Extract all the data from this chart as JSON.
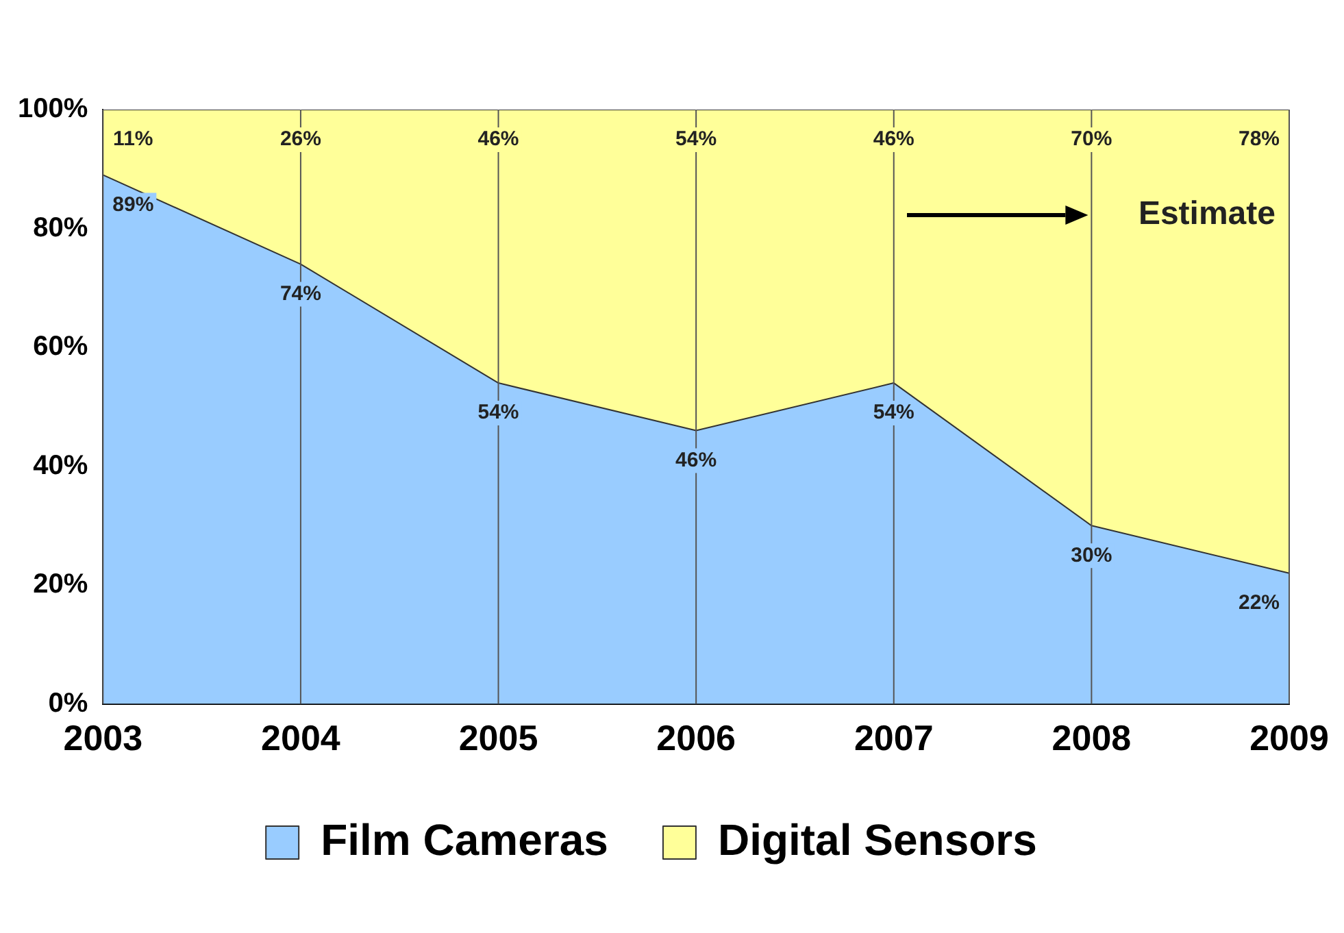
{
  "chart_data": {
    "type": "area",
    "stacked": true,
    "categories": [
      "2003",
      "2004",
      "2005",
      "2006",
      "2007",
      "2008",
      "2009"
    ],
    "series": [
      {
        "name": "Film Cameras",
        "color": "#99ccff",
        "values": [
          89,
          74,
          54,
          46,
          54,
          30,
          22
        ],
        "value_labels": [
          "89%",
          "74%",
          "54%",
          "46%",
          "54%",
          "30%",
          "22%"
        ]
      },
      {
        "name": "Digital Sensors",
        "color": "#ffff99",
        "values": [
          11,
          26,
          46,
          54,
          46,
          70,
          78
        ],
        "value_labels": [
          "11%",
          "26%",
          "46%",
          "54%",
          "46%",
          "70%",
          "78%"
        ]
      }
    ],
    "ylim": [
      0,
      100
    ],
    "yticks": [
      {
        "value": 0,
        "label": "0%"
      },
      {
        "value": 20,
        "label": "20%"
      },
      {
        "value": 40,
        "label": "40%"
      },
      {
        "value": 60,
        "label": "60%"
      },
      {
        "value": 80,
        "label": "80%"
      },
      {
        "value": 100,
        "label": "100%"
      }
    ],
    "grid": "x",
    "legend": "bottom",
    "annotations": [
      "Estimate"
    ]
  }
}
